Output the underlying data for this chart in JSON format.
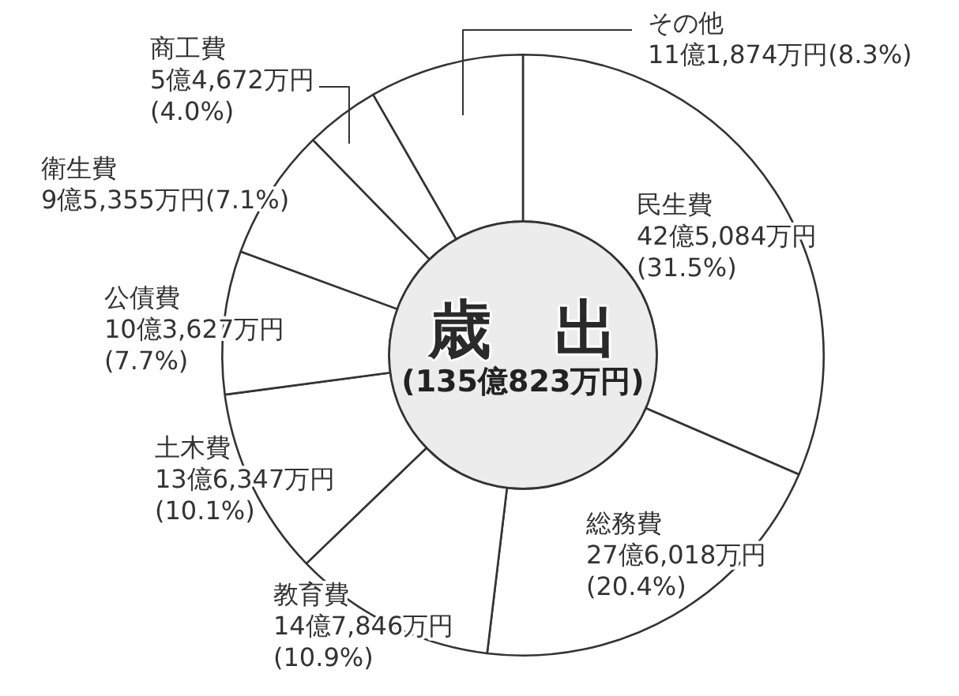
{
  "chart_data": {
    "type": "donut",
    "title": "歳　出",
    "subtitle": "(135億823万円)",
    "categories": [
      "民生費",
      "総務費",
      "教育費",
      "土木費",
      "公債費",
      "衛生費",
      "商工費",
      "その他"
    ],
    "values": [
      31.5,
      20.4,
      10.9,
      10.1,
      7.7,
      7.1,
      4.0,
      8.3
    ],
    "colors": [
      "#ffffff",
      "#ffffff",
      "#ffffff",
      "#ffffff",
      "#ffffff",
      "#ffffff",
      "#ffffff",
      "#ffffff"
    ],
    "value_labels": [
      "42億5,084万円\n(31.5%)",
      "27億6,018万円\n(20.4%)",
      "14億7,846万円\n(10.9%)",
      "13億6,347万円\n(10.1%)",
      "10億3,627万円\n(7.7%)",
      "9億5,355万円(7.1%)",
      "5億4,672万円\n(4.0%)",
      "11億1,874万円(8.3%)"
    ]
  }
}
